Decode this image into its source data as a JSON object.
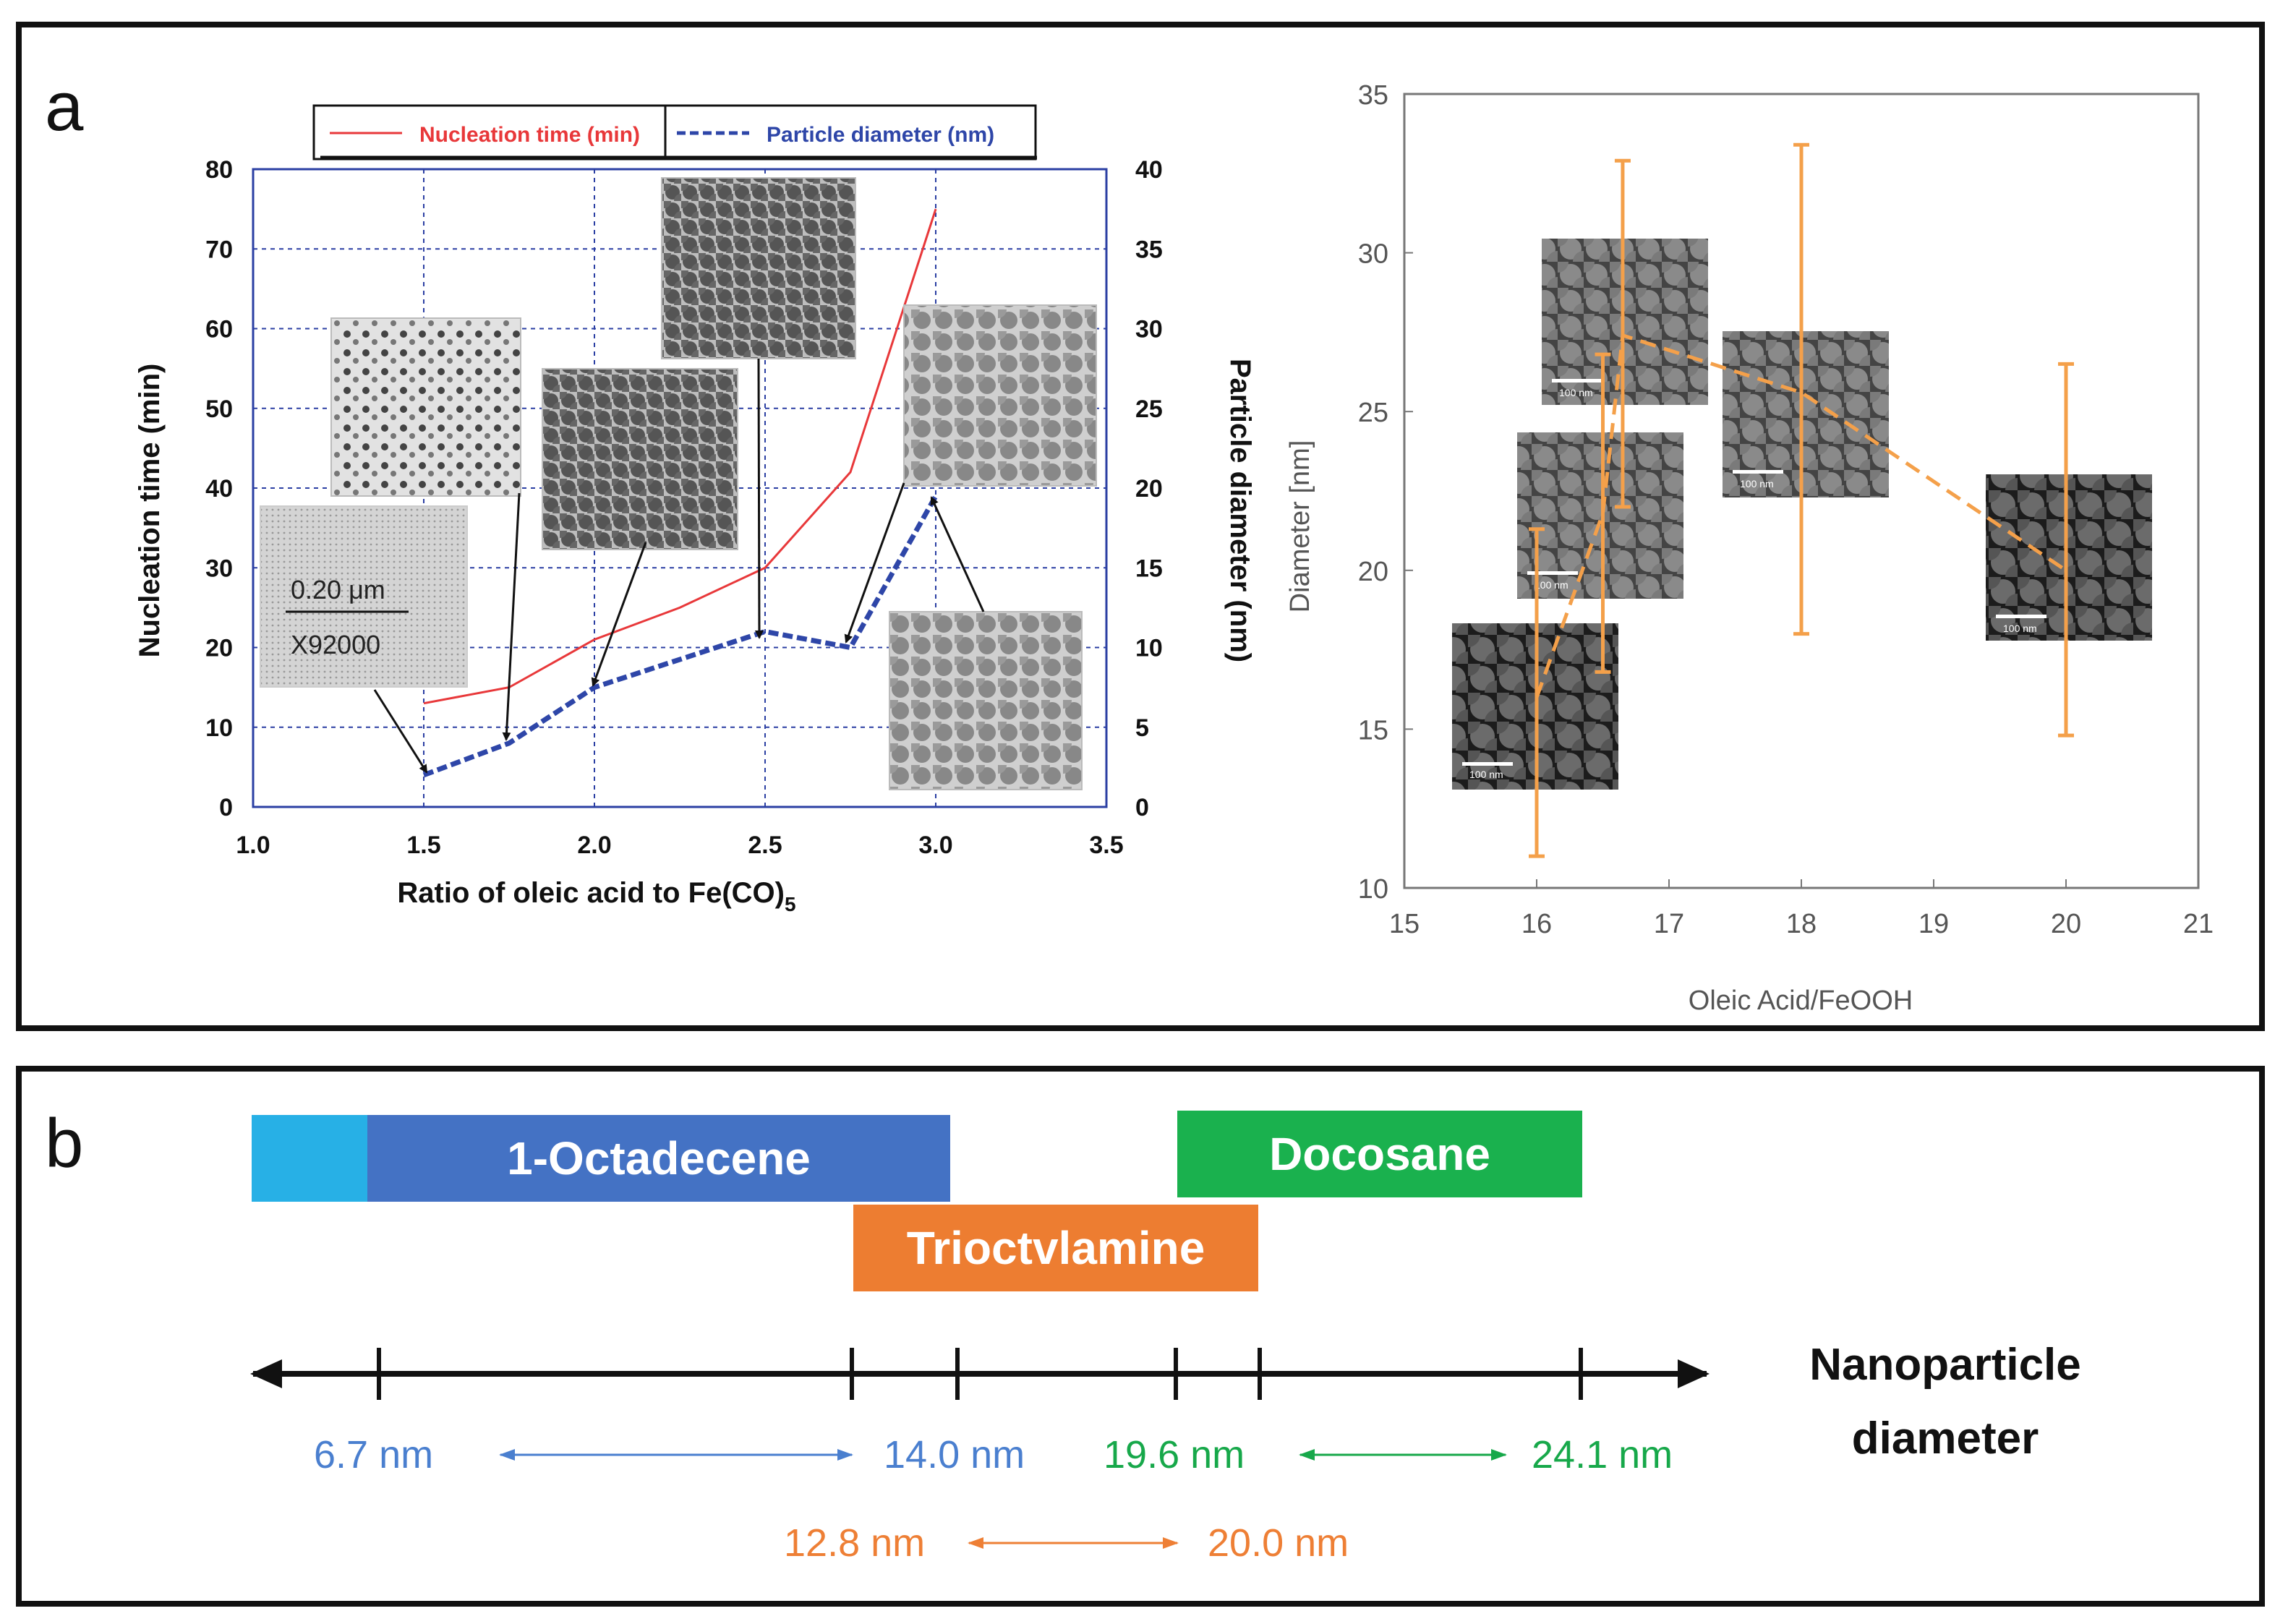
{
  "panel_a": {
    "label": "a",
    "legend": {
      "nucleation": "Nucleation time (min)",
      "diameter": "Particle diameter (nm)"
    },
    "scale_bar": {
      "length": "0.20 μm",
      "magnification": "X92000"
    },
    "right_scale_label": "100 nm"
  },
  "panel_b": {
    "label": "b",
    "bars": {
      "small": "",
      "octadecene": "1-Octadecene",
      "trioctylamine": "Trioctvlamine",
      "docosane": "Docosane"
    },
    "axis_label_line1": "Nanoparticle",
    "axis_label_line2": "diameter",
    "ranges": {
      "octadecene_min": "6.7 nm",
      "octadecene_max": "14.0 nm",
      "docosane_min": "19.6 nm",
      "docosane_max": "24.1 nm",
      "trioctylamine_min": "12.8 nm",
      "trioctylamine_max": "20.0 nm"
    }
  },
  "colors": {
    "red": "#e8383a",
    "blue": "#2e46a8",
    "orange": "#f4a04a",
    "bar_cyan": "#27b0e6",
    "bar_blue": "#4472c4",
    "bar_orange": "#ed7d31",
    "bar_green": "#1ab14e",
    "txt_blue": "#4a7fcf",
    "txt_green": "#17a84a",
    "txt_orange": "#ee7f35"
  },
  "chart_data": [
    {
      "type": "line",
      "title": "",
      "xlabel": "Ratio of oleic acid to Fe(CO)5",
      "ylabel": "Nucleation time (min)",
      "y2label": "Particle diameter (nm)",
      "xlim": [
        1.0,
        3.5
      ],
      "ylim": [
        0,
        80
      ],
      "y2lim": [
        0,
        40
      ],
      "x_ticks": [
        "1.0",
        "1.5",
        "2.0",
        "2.5",
        "3.0",
        "3.5"
      ],
      "y_ticks": [
        "0",
        "10",
        "20",
        "30",
        "40",
        "50",
        "60",
        "70",
        "80"
      ],
      "y2_ticks": [
        "0",
        "5",
        "10",
        "15",
        "20",
        "25",
        "30",
        "35",
        "40"
      ],
      "series": [
        {
          "name": "Nucleation time (min)",
          "axis": "left",
          "style": "solid",
          "x": [
            1.5,
            1.75,
            2.0,
            2.25,
            2.5,
            2.75,
            3.0
          ],
          "y": [
            13,
            15,
            21,
            25,
            30,
            42,
            75
          ]
        },
        {
          "name": "Particle diameter (nm)",
          "axis": "right",
          "style": "dashed",
          "x": [
            1.5,
            1.75,
            2.0,
            2.5,
            2.75,
            3.0
          ],
          "y": [
            2,
            4,
            7.5,
            11,
            10,
            19.5
          ]
        }
      ]
    },
    {
      "type": "scatter",
      "title": "",
      "xlabel": "Oleic Acid/FeOOH",
      "ylabel": "Diameter [nm]",
      "xlim": [
        15,
        21
      ],
      "ylim": [
        10,
        35
      ],
      "x_ticks": [
        "15",
        "16",
        "17",
        "18",
        "19",
        "20",
        "21"
      ],
      "y_ticks": [
        "10",
        "15",
        "20",
        "25",
        "30",
        "35"
      ],
      "series": [
        {
          "name": "Diameter",
          "x": [
            16,
            16.5,
            16.65,
            18,
            20
          ],
          "y": [
            16,
            21.8,
            27.4,
            25.6,
            20
          ],
          "err_low": [
            11,
            16.8,
            22,
            18,
            14.8
          ],
          "err_high": [
            21.3,
            26.8,
            32.9,
            33.4,
            26.5
          ]
        }
      ]
    }
  ]
}
